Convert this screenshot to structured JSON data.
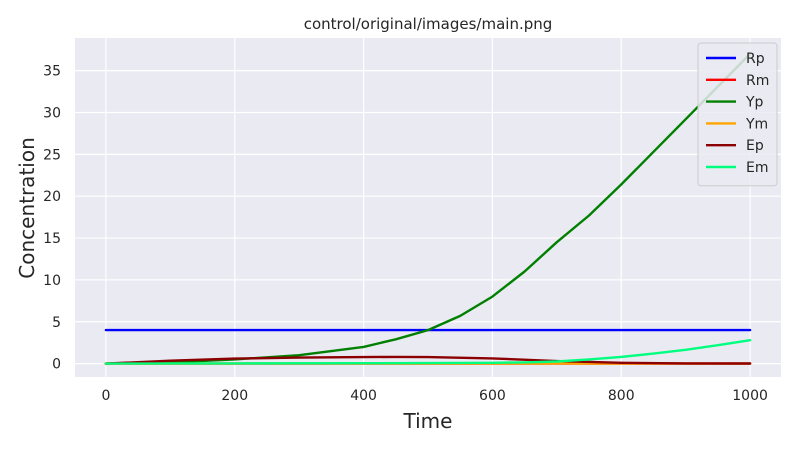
{
  "chart_data": {
    "type": "line",
    "title": "control/original/images/main.png",
    "xlabel": "Time",
    "ylabel": "Concentration",
    "xlim": [
      -48,
      1048
    ],
    "ylim": [
      -1.6,
      38.9
    ],
    "xticks": [
      0,
      200,
      400,
      600,
      800,
      1000
    ],
    "yticks": [
      0,
      5,
      10,
      15,
      20,
      25,
      30,
      35
    ],
    "grid": true,
    "legend": "top-right",
    "background": "#eaeaf2",
    "series": [
      {
        "name": "Rp",
        "color": "#0000ff",
        "x": [
          0,
          1000
        ],
        "y": [
          4.0,
          4.0
        ]
      },
      {
        "name": "Rm",
        "color": "#ff0000",
        "x": [
          0,
          1000
        ],
        "y": [
          0.0,
          0.0
        ]
      },
      {
        "name": "Yp",
        "color": "#008000",
        "x": [
          0,
          100,
          200,
          300,
          400,
          450,
          500,
          550,
          600,
          650,
          700,
          750,
          800,
          850,
          900,
          950,
          1000
        ],
        "y": [
          0.0,
          0.15,
          0.5,
          1.0,
          2.0,
          2.9,
          4.0,
          5.7,
          8.0,
          11.0,
          14.5,
          17.7,
          21.4,
          25.3,
          29.2,
          33.1,
          37.0
        ]
      },
      {
        "name": "Ym",
        "color": "#ffa500",
        "x": [
          0,
          1000
        ],
        "y": [
          0.0,
          0.0
        ]
      },
      {
        "name": "Ep",
        "color": "#8b0000",
        "x": [
          0,
          100,
          200,
          300,
          400,
          450,
          500,
          600,
          700,
          800,
          900,
          1000
        ],
        "y": [
          0.0,
          0.35,
          0.6,
          0.72,
          0.78,
          0.8,
          0.78,
          0.62,
          0.3,
          0.1,
          0.03,
          0.01
        ]
      },
      {
        "name": "Em",
        "color": "#00ff7f",
        "x": [
          0,
          200,
          400,
          600,
          650,
          700,
          750,
          800,
          850,
          900,
          950,
          1000
        ],
        "y": [
          0.0,
          0.02,
          0.05,
          0.1,
          0.15,
          0.25,
          0.5,
          0.8,
          1.2,
          1.65,
          2.2,
          2.8
        ]
      }
    ]
  }
}
